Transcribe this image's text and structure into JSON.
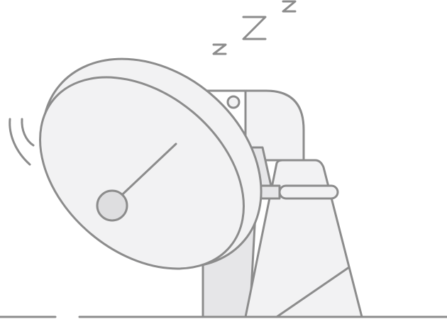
{
  "illustration": {
    "subject": "sleeping-satellite-dish",
    "colors": {
      "stroke": "#8c8c8c",
      "fill_light": "#f2f2f3",
      "fill_mid": "#e6e6e8",
      "fill_hub": "#dedee0",
      "background": "#ffffff"
    },
    "icons": [
      "satellite-dish-icon",
      "sleep-z-icon",
      "signal-wave-icon",
      "ground-line"
    ]
  }
}
